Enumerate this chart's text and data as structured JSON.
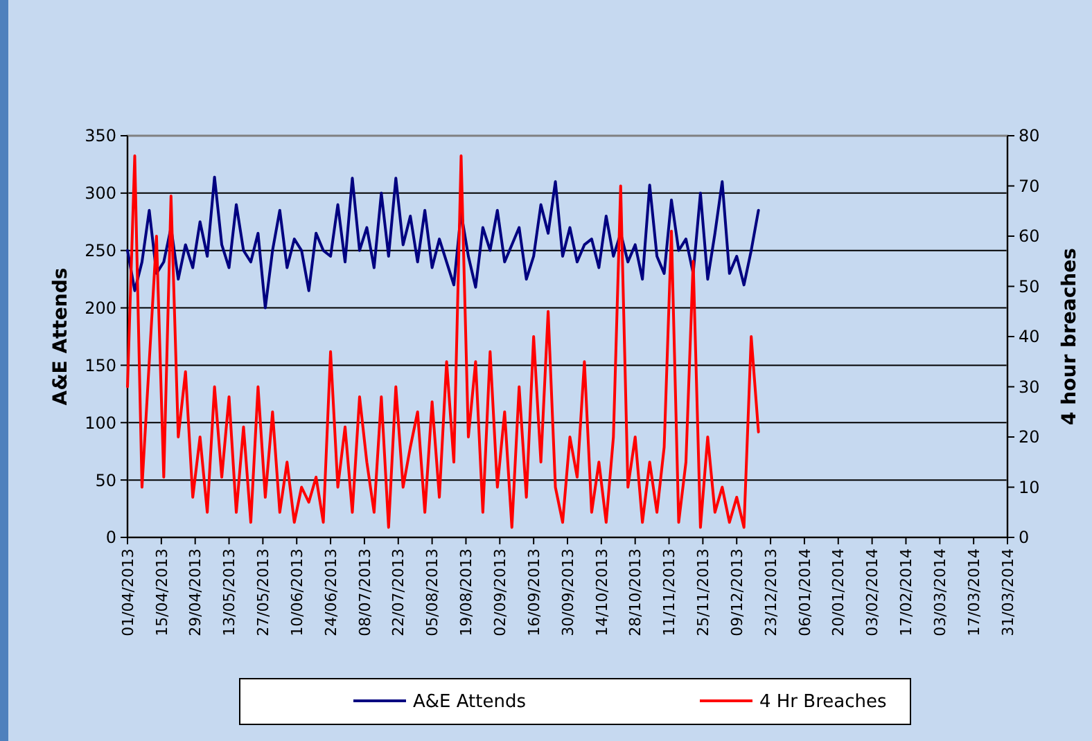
{
  "chart_data": {
    "type": "line",
    "xlabel": null,
    "ylabel": "A&E Attends",
    "y2label": "4 hour breaches",
    "x": [
      "2013-04-01",
      "2013-04-04",
      "2013-04-07",
      "2013-04-10",
      "2013-04-13",
      "2013-04-16",
      "2013-04-19",
      "2013-04-22",
      "2013-04-25",
      "2013-04-28",
      "2013-05-01",
      "2013-05-04",
      "2013-05-07",
      "2013-05-10",
      "2013-05-13",
      "2013-05-16",
      "2013-05-19",
      "2013-05-22",
      "2013-05-25",
      "2013-05-28",
      "2013-05-31",
      "2013-06-03",
      "2013-06-06",
      "2013-06-09",
      "2013-06-12",
      "2013-06-15",
      "2013-06-18",
      "2013-06-21",
      "2013-06-24",
      "2013-06-27",
      "2013-06-30",
      "2013-07-03",
      "2013-07-06",
      "2013-07-09",
      "2013-07-12",
      "2013-07-15",
      "2013-07-18",
      "2013-07-21",
      "2013-07-24",
      "2013-07-27",
      "2013-07-30",
      "2013-08-02",
      "2013-08-05",
      "2013-08-08",
      "2013-08-11",
      "2013-08-14",
      "2013-08-17",
      "2013-08-20",
      "2013-08-23",
      "2013-08-26",
      "2013-08-29",
      "2013-09-01",
      "2013-09-04",
      "2013-09-07",
      "2013-09-10",
      "2013-09-13",
      "2013-09-16",
      "2013-09-19",
      "2013-09-22",
      "2013-09-25",
      "2013-09-28",
      "2013-10-01",
      "2013-10-04",
      "2013-10-07",
      "2013-10-10",
      "2013-10-13",
      "2013-10-16",
      "2013-10-19",
      "2013-10-22",
      "2013-10-25",
      "2013-10-28",
      "2013-10-31",
      "2013-11-03",
      "2013-11-06",
      "2013-11-09",
      "2013-11-12",
      "2013-11-15",
      "2013-11-18",
      "2013-11-21",
      "2013-11-24",
      "2013-11-27",
      "2013-11-30",
      "2013-12-03",
      "2013-12-06",
      "2013-12-09",
      "2013-12-12",
      "2013-12-15",
      "2013-12-18"
    ],
    "series": [
      {
        "name": "A&E Attends",
        "color": "#000080",
        "values": [
          250,
          215,
          240,
          285,
          230,
          240,
          270,
          225,
          255,
          235,
          275,
          245,
          314,
          255,
          235,
          290,
          250,
          240,
          265,
          200,
          250,
          285,
          235,
          260,
          250,
          215,
          265,
          250,
          245,
          290,
          240,
          313,
          250,
          270,
          235,
          300,
          245,
          313,
          255,
          280,
          240,
          285,
          235,
          260,
          240,
          220,
          283,
          245,
          218,
          270,
          250,
          285,
          240,
          255,
          270,
          225,
          245,
          290,
          265,
          310,
          245,
          270,
          240,
          255,
          260,
          235,
          280,
          245,
          265,
          240,
          255,
          225,
          307,
          245,
          230,
          294,
          250,
          260,
          230,
          300,
          225,
          265,
          310,
          230,
          245,
          220,
          250,
          285
        ]
      },
      {
        "name": "4 Hr Breaches",
        "color": "#ff0000",
        "axis": "y2",
        "values": [
          30,
          76,
          10,
          35,
          60,
          12,
          68,
          20,
          33,
          8,
          20,
          5,
          30,
          12,
          28,
          5,
          22,
          3,
          30,
          8,
          25,
          5,
          15,
          3,
          10,
          7,
          12,
          3,
          37,
          10,
          22,
          5,
          28,
          15,
          5,
          28,
          2,
          30,
          10,
          18,
          25,
          5,
          27,
          8,
          35,
          15,
          76,
          20,
          35,
          5,
          37,
          10,
          25,
          2,
          30,
          8,
          40,
          15,
          45,
          10,
          3,
          20,
          12,
          35,
          5,
          15,
          3,
          20,
          70,
          10,
          20,
          3,
          15,
          5,
          18,
          61,
          3,
          15,
          55,
          2,
          20,
          5,
          10,
          3,
          8,
          2,
          40,
          21
        ]
      }
    ],
    "xlim": [
      "2013-04-01",
      "2014-03-31"
    ],
    "xticks": [
      {
        "value": "2013-04-01",
        "label": "01/04/2013"
      },
      {
        "value": "2013-04-15",
        "label": "15/04/2013"
      },
      {
        "value": "2013-04-29",
        "label": "29/04/2013"
      },
      {
        "value": "2013-05-13",
        "label": "13/05/2013"
      },
      {
        "value": "2013-05-27",
        "label": "27/05/2013"
      },
      {
        "value": "2013-06-10",
        "label": "10/06/2013"
      },
      {
        "value": "2013-06-24",
        "label": "24/06/2013"
      },
      {
        "value": "2013-07-08",
        "label": "08/07/2013"
      },
      {
        "value": "2013-07-22",
        "label": "22/07/2013"
      },
      {
        "value": "2013-08-05",
        "label": "05/08/2013"
      },
      {
        "value": "2013-08-19",
        "label": "19/08/2013"
      },
      {
        "value": "2013-09-02",
        "label": "02/09/2013"
      },
      {
        "value": "2013-09-16",
        "label": "16/09/2013"
      },
      {
        "value": "2013-09-30",
        "label": "30/09/2013"
      },
      {
        "value": "2013-10-14",
        "label": "14/10/2013"
      },
      {
        "value": "2013-10-28",
        "label": "28/10/2013"
      },
      {
        "value": "2013-11-11",
        "label": "11/11/2013"
      },
      {
        "value": "2013-11-25",
        "label": "25/11/2013"
      },
      {
        "value": "2013-12-09",
        "label": "09/12/2013"
      },
      {
        "value": "2013-12-23",
        "label": "23/12/2013"
      },
      {
        "value": "2014-01-06",
        "label": "06/01/2014"
      },
      {
        "value": "2014-01-20",
        "label": "20/01/2014"
      },
      {
        "value": "2014-02-03",
        "label": "03/02/2014"
      },
      {
        "value": "2014-02-17",
        "label": "17/02/2014"
      },
      {
        "value": "2014-03-03",
        "label": "03/03/2014"
      },
      {
        "value": "2014-03-17",
        "label": "17/03/2014"
      },
      {
        "value": "2014-03-31",
        "label": "31/03/2014"
      }
    ],
    "ylim": [
      0,
      350
    ],
    "yticks": [
      0,
      50,
      100,
      150,
      200,
      250,
      300,
      350
    ],
    "y2lim": [
      0,
      80
    ],
    "y2ticks": [
      0,
      10,
      20,
      30,
      40,
      50,
      60,
      70,
      80
    ],
    "grid": "y",
    "legend": "bottom",
    "line_style": "solid"
  }
}
